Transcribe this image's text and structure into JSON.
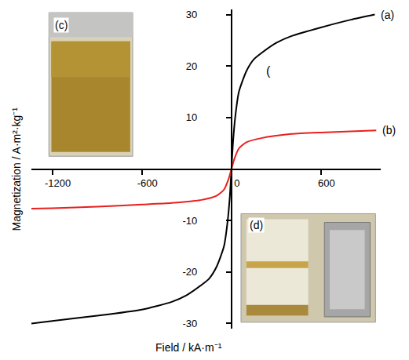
{
  "chart_data": {
    "type": "line",
    "x_label": "Field / kA·m⁻¹",
    "y_label": "Magnetization / A·m²·kg⁻¹",
    "xlim": [
      -1340,
      1000
    ],
    "ylim": [
      -31,
      31
    ],
    "xticks": [
      -1200,
      -600,
      0,
      600
    ],
    "yticks": [
      -30,
      -20,
      -10,
      10,
      20,
      30
    ],
    "grid": false,
    "series": [
      {
        "name": "(a)",
        "color": "#000000",
        "x": [
          -1340,
          -1200,
          -900,
          -600,
          -400,
          -300,
          -200,
          -150,
          -100,
          -50,
          -25,
          -10,
          0,
          10,
          25,
          50,
          100,
          150,
          200,
          300,
          400,
          600,
          800,
          960
        ],
        "values": [
          -30,
          -29.5,
          -28.5,
          -27.3,
          -25.8,
          -24.5,
          -22.5,
          -21.3,
          -19,
          -15,
          -10,
          -5,
          0,
          5,
          10,
          15,
          19,
          21.3,
          22.5,
          24.5,
          25.8,
          27.5,
          29,
          30
        ]
      },
      {
        "name": "(b)",
        "color": "#e8201e",
        "x": [
          -1340,
          -1200,
          -900,
          -600,
          -400,
          -200,
          -100,
          -50,
          -20,
          0,
          20,
          50,
          100,
          200,
          400,
          600,
          800,
          970
        ],
        "values": [
          -7.7,
          -7.6,
          -7.3,
          -6.9,
          -6.6,
          -6,
          -5.2,
          -4,
          -2,
          0,
          2,
          4,
          5.2,
          6,
          6.8,
          7.1,
          7.3,
          7.5
        ]
      }
    ],
    "annotations": [
      {
        "text": "(",
        "x": 250,
        "y": 19
      }
    ],
    "insets": [
      {
        "label": "(c)"
      },
      {
        "label": "(d)"
      }
    ]
  }
}
